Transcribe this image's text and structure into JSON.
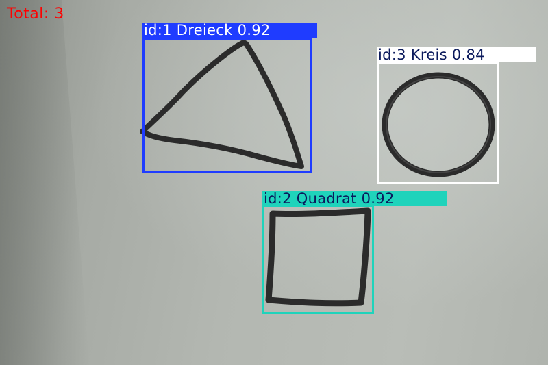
{
  "overlay": {
    "total_label": "Total: 3",
    "total_color": "#ff0000"
  },
  "detections": [
    {
      "id_text": "id:1 Dreieck 0.92",
      "shape": "triangle-icon",
      "box_color": "#1f3cff",
      "label_text_color": "#ffffff"
    },
    {
      "id_text": "id:3 Kreis 0.84",
      "shape": "circle-icon",
      "box_color": "#ffffff",
      "label_text_color": "#0b1a5c"
    },
    {
      "id_text": "id:2 Quadrat 0.92",
      "shape": "square-icon",
      "box_color": "#1fd3bb",
      "label_text_color": "#0b1a5c"
    }
  ]
}
